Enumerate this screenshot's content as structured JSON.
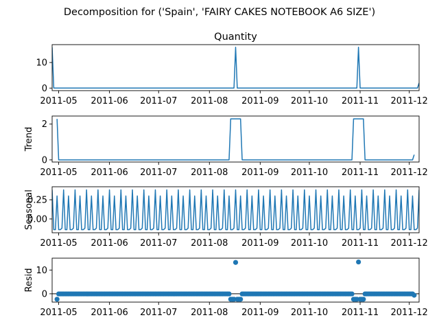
{
  "suptitle": "Decomposition for ('Spain', 'FAIRY CAKES NOTEBOOK A6 SIZE')",
  "colors": {
    "line": "#1f77b4",
    "axis": "#000000"
  },
  "chart_data": [
    {
      "type": "line",
      "name": "observed",
      "title": "Quantity",
      "ylabel": "",
      "x_start": "2011-04-27",
      "x_end": "2011-12-07",
      "xlim": [
        "2011-04-27",
        "2011-12-07"
      ],
      "ylim": [
        -1.0,
        17.0
      ],
      "yticks": [
        0,
        10
      ],
      "xticks": [
        "2011-05",
        "2011-06",
        "2011-07",
        "2011-08",
        "2011-09",
        "2011-10",
        "2011-11",
        "2011-12"
      ],
      "grid": false,
      "points": [
        [
          "2011-04-27",
          16
        ],
        [
          "2011-04-28",
          0
        ],
        [
          "2011-08-16",
          0
        ],
        [
          "2011-08-17",
          16
        ],
        [
          "2011-08-18",
          0
        ],
        [
          "2011-10-30",
          0
        ],
        [
          "2011-10-31",
          16
        ],
        [
          "2011-11-01",
          0
        ],
        [
          "2011-12-06",
          0
        ],
        [
          "2011-12-07",
          2
        ]
      ]
    },
    {
      "type": "line",
      "name": "trend",
      "title": "",
      "ylabel": "Trend",
      "xlim": [
        "2011-04-27",
        "2011-12-07"
      ],
      "ylim": [
        -0.12,
        2.45
      ],
      "yticks": [
        0,
        2
      ],
      "xticks": [
        "2011-05",
        "2011-06",
        "2011-07",
        "2011-08",
        "2011-09",
        "2011-10",
        "2011-11",
        "2011-12"
      ],
      "grid": false,
      "points": [
        [
          "2011-04-30",
          2.29
        ],
        [
          "2011-05-01",
          0
        ],
        [
          "2011-08-13",
          0
        ],
        [
          "2011-08-14",
          2.29
        ],
        [
          "2011-08-20",
          2.29
        ],
        [
          "2011-08-21",
          0
        ],
        [
          "2011-10-27",
          0
        ],
        [
          "2011-10-28",
          2.29
        ],
        [
          "2011-11-03",
          2.29
        ],
        [
          "2011-11-04",
          0
        ],
        [
          "2011-12-03",
          0
        ],
        [
          "2011-12-04",
          0.29
        ]
      ]
    },
    {
      "type": "line",
      "name": "seasonal",
      "title": "",
      "ylabel": "Seasonal",
      "xlim": [
        "2011-04-27",
        "2011-12-07"
      ],
      "ylim": [
        -0.18,
        0.42
      ],
      "yticks": [
        0.25,
        0.0
      ],
      "ytick_labels": [
        "0.25",
        "0.00"
      ],
      "xticks": [
        "2011-05",
        "2011-06",
        "2011-07",
        "2011-08",
        "2011-09",
        "2011-10",
        "2011-11",
        "2011-12"
      ],
      "grid": false,
      "period_days": 7,
      "pattern": [
        0.38,
        -0.14,
        -0.14,
        0.3,
        -0.14,
        -0.14,
        -0.12
      ]
    },
    {
      "type": "scatter",
      "name": "resid",
      "title": "",
      "ylabel": "Resid",
      "xlim": [
        "2011-04-27",
        "2011-12-07"
      ],
      "ylim": [
        -3.5,
        15.0
      ],
      "yticks": [
        0,
        10
      ],
      "xticks": [
        "2011-05",
        "2011-06",
        "2011-07",
        "2011-08",
        "2011-09",
        "2011-10",
        "2011-11",
        "2011-12"
      ],
      "grid": false,
      "baseline": 0,
      "default_value": -0.05,
      "special_points": [
        [
          "2011-04-30",
          -2.3
        ],
        [
          "2011-08-14",
          -2.3
        ],
        [
          "2011-08-15",
          -2.3
        ],
        [
          "2011-08-16",
          -2.3
        ],
        [
          "2011-08-17",
          13.2
        ],
        [
          "2011-08-18",
          -2.3
        ],
        [
          "2011-08-19",
          -2.3
        ],
        [
          "2011-08-20",
          -2.3
        ],
        [
          "2011-10-28",
          -2.3
        ],
        [
          "2011-10-29",
          -2.3
        ],
        [
          "2011-10-30",
          -2.3
        ],
        [
          "2011-10-31",
          13.4
        ],
        [
          "2011-11-01",
          -2.3
        ],
        [
          "2011-11-02",
          -2.3
        ],
        [
          "2011-11-03",
          -2.3
        ],
        [
          "2011-12-04",
          -0.6
        ]
      ]
    }
  ]
}
